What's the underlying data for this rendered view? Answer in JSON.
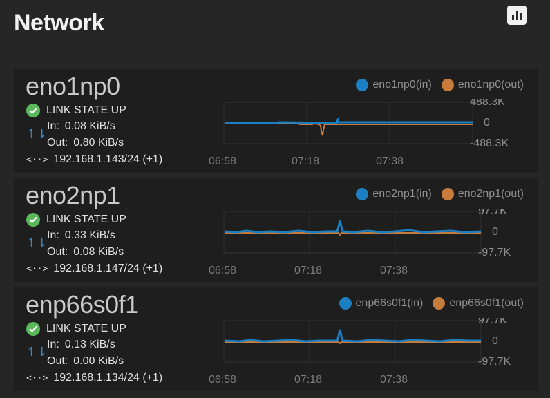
{
  "page": {
    "title": "Network"
  },
  "toolbar": {
    "chart_icon": "bar-chart-icon"
  },
  "colors": {
    "in": "#1b7fc4",
    "out": "#c77c3c",
    "ok": "#5cb85c"
  },
  "interfaces": [
    {
      "name": "eno1np0",
      "legend_in": "eno1np0(in)",
      "legend_out": "eno1np0(out)",
      "link_state": "LINK STATE UP",
      "in_label": "In:",
      "in_value": "0.08 KiB/s",
      "out_label": "Out:",
      "out_value": "0.80 KiB/s",
      "ip": "192.168.1.143/24 (+1)",
      "y_top": "488.3K",
      "y_zero": "0",
      "y_bottom": "-488.3K",
      "x_ticks": [
        "06:58",
        "07:18",
        "07:38"
      ]
    },
    {
      "name": "eno2np1",
      "legend_in": "eno2np1(in)",
      "legend_out": "eno2np1(out)",
      "link_state": "LINK STATE UP",
      "in_label": "In:",
      "in_value": "0.33 KiB/s",
      "out_label": "Out:",
      "out_value": "0.08 KiB/s",
      "ip": "192.168.1.147/24 (+1)",
      "y_top": "97.7K",
      "y_zero": "0",
      "y_bottom": "-97.7K",
      "x_ticks": [
        "06:58",
        "07:18",
        "07:38"
      ]
    },
    {
      "name": "enp66s0f1",
      "legend_in": "enp66s0f1(in)",
      "legend_out": "enp66s0f1(out)",
      "link_state": "LINK STATE UP",
      "in_label": "In:",
      "in_value": "0.13 KiB/s",
      "out_label": "Out:",
      "out_value": "0.00 KiB/s",
      "ip": "192.168.1.134/24 (+1)",
      "y_top": "97.7K",
      "y_zero": "0",
      "y_bottom": "-97.7K",
      "x_ticks": [
        "06:58",
        "07:18",
        "07:38"
      ]
    }
  ]
}
